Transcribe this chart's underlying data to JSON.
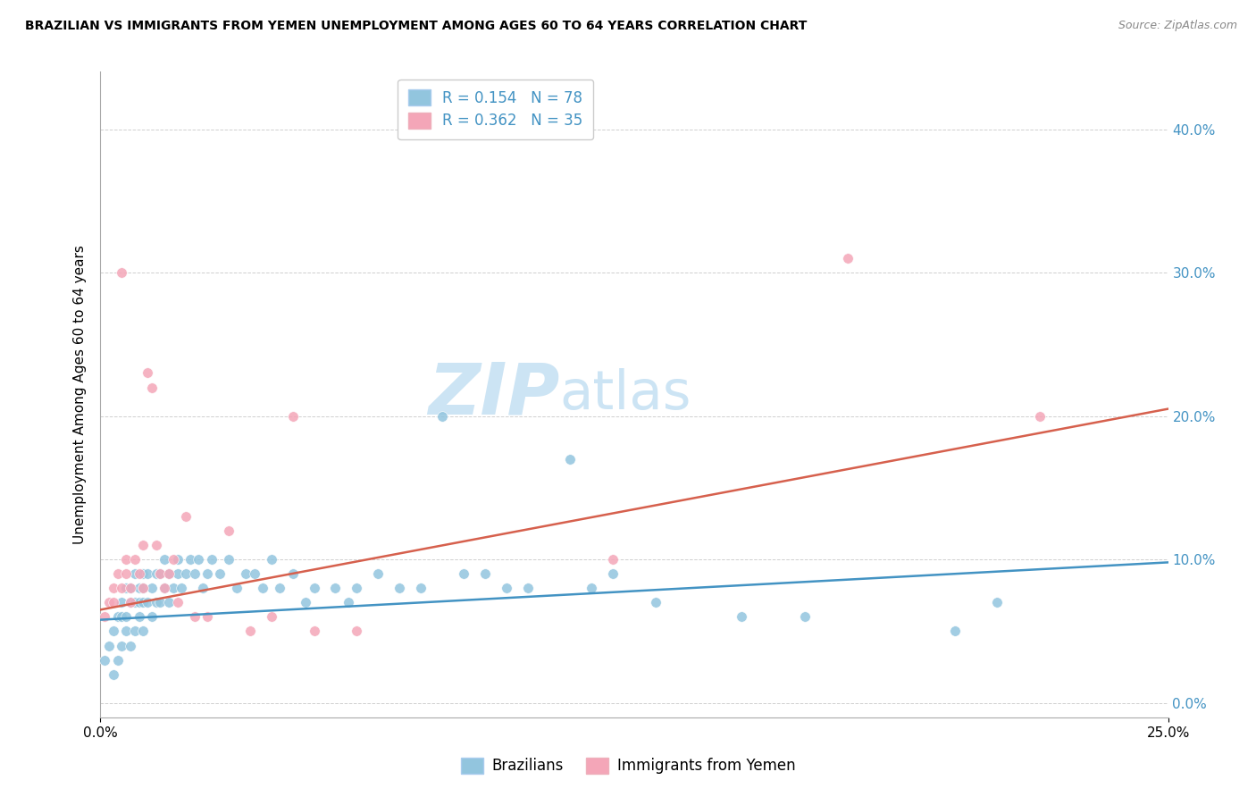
{
  "title": "BRAZILIAN VS IMMIGRANTS FROM YEMEN UNEMPLOYMENT AMONG AGES 60 TO 64 YEARS CORRELATION CHART",
  "source": "Source: ZipAtlas.com",
  "ylabel": "Unemployment Among Ages 60 to 64 years",
  "ytick_labels": [
    "0.0%",
    "10.0%",
    "20.0%",
    "30.0%",
    "40.0%"
  ],
  "ytick_values": [
    0.0,
    0.1,
    0.2,
    0.3,
    0.4
  ],
  "xlim": [
    0.0,
    0.25
  ],
  "ylim": [
    -0.01,
    0.44
  ],
  "legend_label1": "Brazilians",
  "legend_label2": "Immigrants from Yemen",
  "r1": "0.154",
  "n1": "78",
  "r2": "0.362",
  "n2": "35",
  "color_blue": "#92c5de",
  "color_pink": "#f4a6b8",
  "line_color_blue": "#4393c3",
  "line_color_pink": "#d6604d",
  "tick_color": "#4393c3",
  "watermark_zip": "ZIP",
  "watermark_atlas": "atlas",
  "watermark_color": "#cce4f4",
  "grid_color": "#bbbbbb",
  "blue_scatter_x": [
    0.001,
    0.002,
    0.003,
    0.003,
    0.004,
    0.004,
    0.005,
    0.005,
    0.005,
    0.006,
    0.006,
    0.006,
    0.007,
    0.007,
    0.007,
    0.008,
    0.008,
    0.008,
    0.009,
    0.009,
    0.009,
    0.01,
    0.01,
    0.01,
    0.01,
    0.011,
    0.011,
    0.012,
    0.012,
    0.013,
    0.013,
    0.014,
    0.014,
    0.015,
    0.015,
    0.016,
    0.016,
    0.017,
    0.018,
    0.018,
    0.019,
    0.02,
    0.021,
    0.022,
    0.023,
    0.024,
    0.025,
    0.026,
    0.028,
    0.03,
    0.032,
    0.034,
    0.036,
    0.038,
    0.04,
    0.042,
    0.045,
    0.048,
    0.05,
    0.055,
    0.058,
    0.06,
    0.065,
    0.07,
    0.075,
    0.08,
    0.085,
    0.09,
    0.095,
    0.1,
    0.11,
    0.115,
    0.12,
    0.13,
    0.15,
    0.165,
    0.2,
    0.21
  ],
  "blue_scatter_y": [
    0.03,
    0.04,
    0.02,
    0.05,
    0.03,
    0.06,
    0.04,
    0.06,
    0.07,
    0.05,
    0.06,
    0.08,
    0.04,
    0.07,
    0.08,
    0.05,
    0.07,
    0.09,
    0.06,
    0.07,
    0.08,
    0.05,
    0.07,
    0.08,
    0.09,
    0.07,
    0.09,
    0.06,
    0.08,
    0.07,
    0.09,
    0.07,
    0.09,
    0.08,
    0.1,
    0.07,
    0.09,
    0.08,
    0.09,
    0.1,
    0.08,
    0.09,
    0.1,
    0.09,
    0.1,
    0.08,
    0.09,
    0.1,
    0.09,
    0.1,
    0.08,
    0.09,
    0.09,
    0.08,
    0.1,
    0.08,
    0.09,
    0.07,
    0.08,
    0.08,
    0.07,
    0.08,
    0.09,
    0.08,
    0.08,
    0.2,
    0.09,
    0.09,
    0.08,
    0.08,
    0.17,
    0.08,
    0.09,
    0.07,
    0.06,
    0.06,
    0.05,
    0.07
  ],
  "pink_scatter_x": [
    0.001,
    0.002,
    0.003,
    0.003,
    0.004,
    0.005,
    0.005,
    0.006,
    0.006,
    0.007,
    0.007,
    0.008,
    0.009,
    0.01,
    0.01,
    0.011,
    0.012,
    0.013,
    0.014,
    0.015,
    0.016,
    0.017,
    0.018,
    0.02,
    0.022,
    0.025,
    0.03,
    0.035,
    0.04,
    0.045,
    0.05,
    0.06,
    0.12,
    0.175,
    0.22
  ],
  "pink_scatter_y": [
    0.06,
    0.07,
    0.08,
    0.07,
    0.09,
    0.08,
    0.3,
    0.09,
    0.1,
    0.08,
    0.07,
    0.1,
    0.09,
    0.08,
    0.11,
    0.23,
    0.22,
    0.11,
    0.09,
    0.08,
    0.09,
    0.1,
    0.07,
    0.13,
    0.06,
    0.06,
    0.12,
    0.05,
    0.06,
    0.2,
    0.05,
    0.05,
    0.1,
    0.31,
    0.2
  ],
  "blue_line_x": [
    0.0,
    0.25
  ],
  "blue_line_y": [
    0.058,
    0.098
  ],
  "pink_line_x": [
    0.0,
    0.25
  ],
  "pink_line_y": [
    0.065,
    0.205
  ]
}
